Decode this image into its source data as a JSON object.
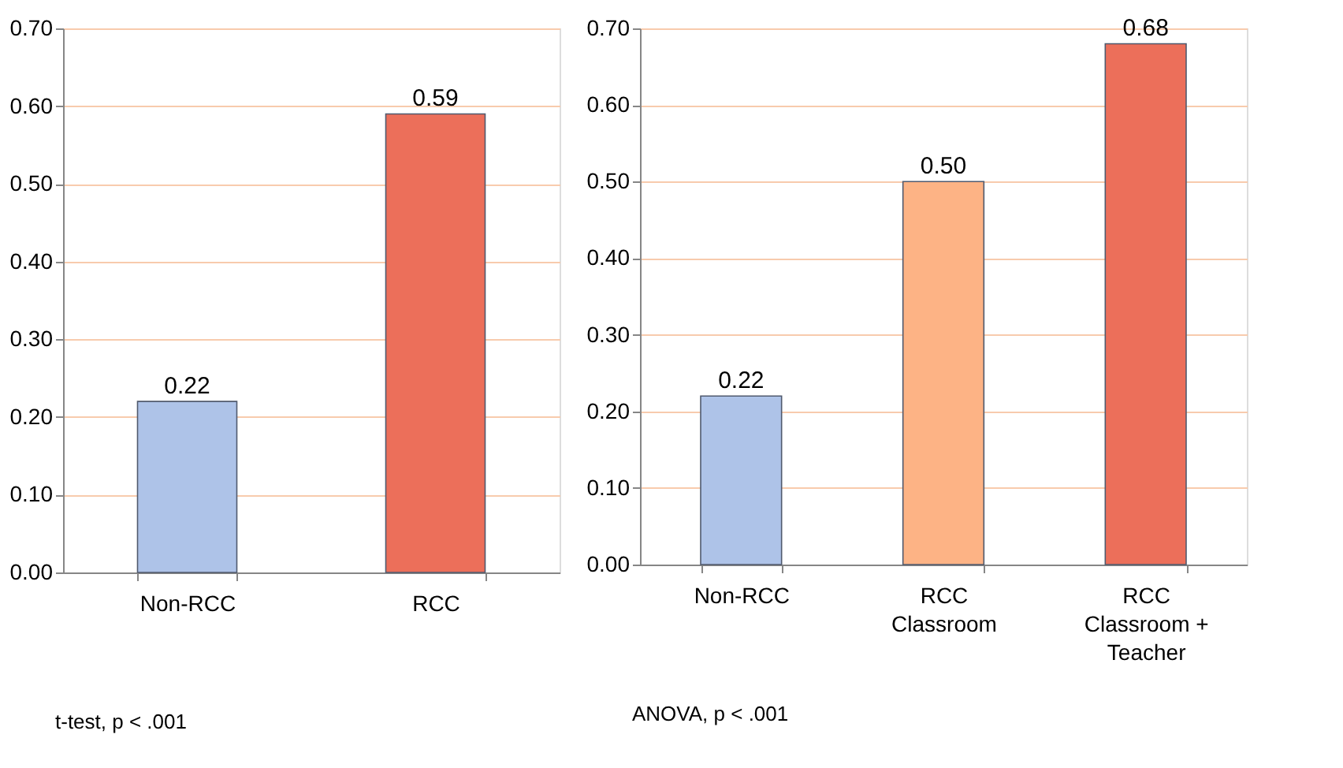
{
  "chart_data": [
    {
      "type": "bar",
      "categories": [
        "Non-RCC",
        "RCC"
      ],
      "values": [
        0.22,
        0.59
      ],
      "colors": [
        "#aec3e8",
        "#ec6f5a"
      ],
      "ylim": [
        0,
        0.7
      ],
      "yticks": [
        {
          "value": 0,
          "label": "0.00"
        },
        {
          "value": 0.1,
          "label": "0.10"
        },
        {
          "value": 0.2,
          "label": "0.20"
        },
        {
          "value": 0.3,
          "label": "0.30"
        },
        {
          "value": 0.4,
          "label": "0.40"
        },
        {
          "value": 0.5,
          "label": "0.50"
        },
        {
          "value": 0.6,
          "label": "0.60"
        },
        {
          "value": 0.7,
          "label": "0.70"
        }
      ],
      "grid": "y",
      "value_labels": [
        "0.22",
        "0.59"
      ],
      "annotations": [
        "t-test, p < .001"
      ]
    },
    {
      "type": "bar",
      "categories": [
        "Non-RCC",
        "RCC\nClassroom",
        "RCC\nClassroom +\nTeacher"
      ],
      "values": [
        0.22,
        0.5,
        0.68
      ],
      "colors": [
        "#aec3e8",
        "#fdb385",
        "#ec6f5a"
      ],
      "ylim": [
        0,
        0.7
      ],
      "yticks": [
        {
          "value": 0,
          "label": "0.00"
        },
        {
          "value": 0.1,
          "label": "0.10"
        },
        {
          "value": 0.2,
          "label": "0.20"
        },
        {
          "value": 0.3,
          "label": "0.30"
        },
        {
          "value": 0.4,
          "label": "0.40"
        },
        {
          "value": 0.5,
          "label": "0.50"
        },
        {
          "value": 0.6,
          "label": "0.60"
        },
        {
          "value": 0.7,
          "label": "0.70"
        }
      ],
      "grid": "y",
      "value_labels": [
        "0.22",
        "0.50",
        "0.68"
      ],
      "annotations": [
        "ANOVA, p < .001"
      ]
    }
  ]
}
